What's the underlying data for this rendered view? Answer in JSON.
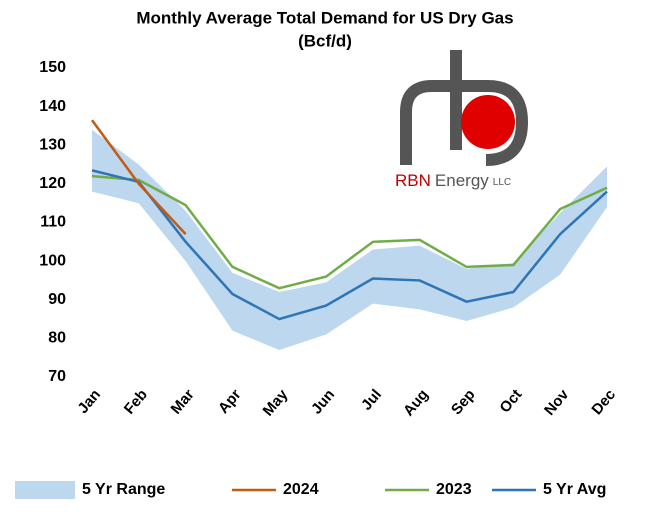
{
  "chart_data": {
    "type": "line",
    "title": "Monthly Average Total Demand for US Dry Gas",
    "subtitle": "(Bcf/d)",
    "categories": [
      "Jan",
      "Feb",
      "Mar",
      "Apr",
      "May",
      "Jun",
      "Jul",
      "Aug",
      "Sep",
      "Oct",
      "Nov",
      "Dec"
    ],
    "range": {
      "name": "5 Yr Range",
      "color": "#bdd7ee",
      "low": [
        118,
        115,
        100,
        82,
        77,
        81,
        89,
        87.5,
        84.5,
        88,
        96.5,
        114
      ],
      "high": [
        134,
        125,
        113,
        97,
        92,
        94.5,
        103,
        104,
        98,
        99.5,
        112.5,
        124.5
      ]
    },
    "series": [
      {
        "name": "2024",
        "color": "#c55a11",
        "values": [
          136.5,
          120,
          107,
          null,
          null,
          null,
          null,
          null,
          null,
          null,
          null,
          null
        ]
      },
      {
        "name": "2023",
        "color": "#70ad47",
        "values": [
          122,
          121,
          114.5,
          98.5,
          93,
          96,
          105,
          105.5,
          98.5,
          99,
          113.5,
          119
        ]
      },
      {
        "name": "5 Yr Avg",
        "color": "#2e75b6",
        "values": [
          123.5,
          120.5,
          105,
          91.5,
          85,
          88.5,
          95.5,
          95,
          89.5,
          92,
          107,
          118
        ]
      }
    ],
    "ylim": [
      70,
      150
    ],
    "yticks": [
      70,
      80,
      90,
      100,
      110,
      120,
      130,
      140,
      150
    ],
    "logo": {
      "name": "RBN",
      "word": "Energy",
      "suffix": "LLC"
    }
  }
}
